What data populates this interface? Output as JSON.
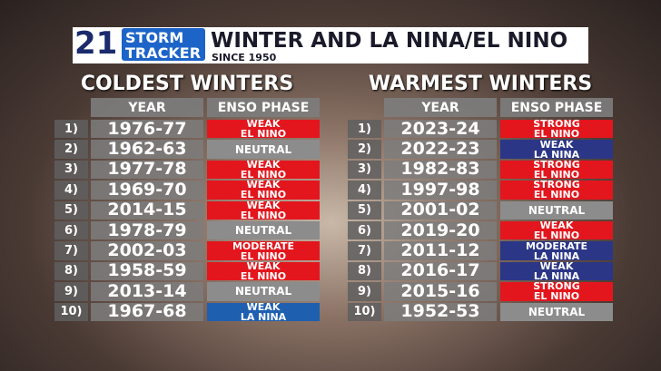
{
  "header": {
    "logo_number": "21",
    "logo_line1": "STORM",
    "logo_line2": "TRACKER",
    "title": "WINTER AND LA NINA/EL NINO",
    "subtitle": "SINCE 1950"
  },
  "tables": [
    {
      "title": "COLDEST WINTERS",
      "columns": [
        "YEAR",
        "ENSO PHASE"
      ],
      "rows": [
        {
          "rank": "1)",
          "year": "1976-77",
          "phase": [
            "WEAK",
            "EL NINO"
          ],
          "color": "#e3161d"
        },
        {
          "rank": "2)",
          "year": "1962-63",
          "phase": [
            "NEUTRAL"
          ],
          "color": "#8c8c8c"
        },
        {
          "rank": "3)",
          "year": "1977-78",
          "phase": [
            "WEAK",
            "EL NINO"
          ],
          "color": "#e3161d"
        },
        {
          "rank": "4)",
          "year": "1969-70",
          "phase": [
            "WEAK",
            "EL NINO"
          ],
          "color": "#e3161d"
        },
        {
          "rank": "5)",
          "year": "2014-15",
          "phase": [
            "WEAK",
            "EL NINO"
          ],
          "color": "#e3161d"
        },
        {
          "rank": "6)",
          "year": "1978-79",
          "phase": [
            "NEUTRAL"
          ],
          "color": "#8c8c8c"
        },
        {
          "rank": "7)",
          "year": "2002-03",
          "phase": [
            "MODERATE",
            "EL NINO"
          ],
          "color": "#e3161d"
        },
        {
          "rank": "8)",
          "year": "1958-59",
          "phase": [
            "WEAK",
            "EL NINO"
          ],
          "color": "#e3161d"
        },
        {
          "rank": "9)",
          "year": "2013-14",
          "phase": [
            "NEUTRAL"
          ],
          "color": "#8c8c8c"
        },
        {
          "rank": "10)",
          "year": "1967-68",
          "phase": [
            "WEAK",
            "LA NINA"
          ],
          "color": "#1f5fb0"
        }
      ]
    },
    {
      "title": "WARMEST WINTERS",
      "columns": [
        "YEAR",
        "ENSO PHASE"
      ],
      "rows": [
        {
          "rank": "1)",
          "year": "2023-24",
          "phase": [
            "STRONG",
            "EL NINO"
          ],
          "color": "#e3161d"
        },
        {
          "rank": "2)",
          "year": "2022-23",
          "phase": [
            "WEAK",
            "LA NINA"
          ],
          "color": "#2b3686"
        },
        {
          "rank": "3)",
          "year": "1982-83",
          "phase": [
            "STRONG",
            "EL NINO"
          ],
          "color": "#e3161d"
        },
        {
          "rank": "4)",
          "year": "1997-98",
          "phase": [
            "STRONG",
            "EL NINO"
          ],
          "color": "#e3161d"
        },
        {
          "rank": "5)",
          "year": "2001-02",
          "phase": [
            "NEUTRAL"
          ],
          "color": "#8c8c8c"
        },
        {
          "rank": "6)",
          "year": "2019-20",
          "phase": [
            "WEAK",
            "EL NINO"
          ],
          "color": "#e3161d"
        },
        {
          "rank": "7)",
          "year": "2011-12",
          "phase": [
            "MODERATE",
            "LA NINA"
          ],
          "color": "#2b3686"
        },
        {
          "rank": "8)",
          "year": "2016-17",
          "phase": [
            "WEAK",
            "LA NINA"
          ],
          "color": "#2b3686"
        },
        {
          "rank": "9)",
          "year": "2015-16",
          "phase": [
            "STRONG",
            "EL NINO"
          ],
          "color": "#e3161d"
        },
        {
          "rank": "10)",
          "year": "1952-53",
          "phase": [
            "NEUTRAL"
          ],
          "color": "#8c8c8c"
        }
      ]
    }
  ]
}
